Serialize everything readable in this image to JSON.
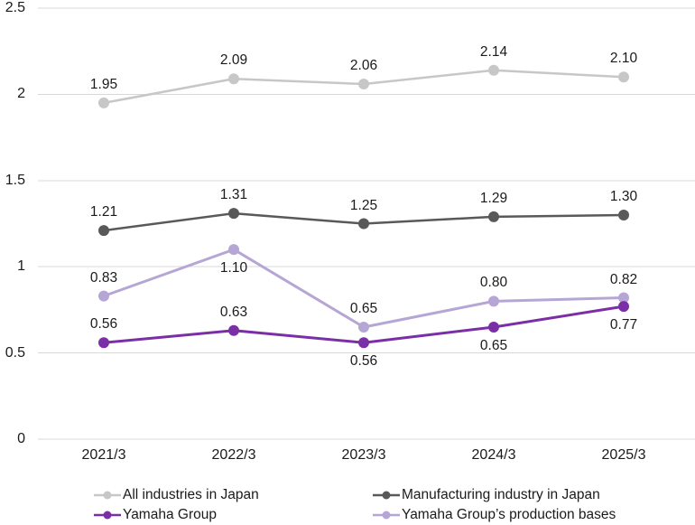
{
  "chart_data": {
    "type": "line",
    "title": "",
    "categories": [
      "2021/3",
      "2022/3",
      "2023/3",
      "2024/3",
      "2025/3"
    ],
    "series": [
      {
        "name": "All industries in Japan",
        "color": "#c7c7c7",
        "values": [
          1.95,
          2.09,
          2.06,
          2.14,
          2.1
        ],
        "labels": [
          "1.95",
          "2.09",
          "2.06",
          "2.14",
          "2.10"
        ],
        "label_positions": [
          "above",
          "above",
          "above",
          "above",
          "above"
        ]
      },
      {
        "name": "Manufacturing industry in Japan",
        "color": "#595959",
        "values": [
          1.21,
          1.31,
          1.25,
          1.29,
          1.3
        ],
        "labels": [
          "1.21",
          "1.31",
          "1.25",
          "1.29",
          "1.30"
        ],
        "label_positions": [
          "above",
          "above",
          "above",
          "above",
          "above"
        ]
      },
      {
        "name": "Yamaha Group",
        "color": "#7b2fa6",
        "values": [
          0.56,
          0.63,
          0.56,
          0.65,
          0.77
        ],
        "labels": [
          "0.56",
          "0.63",
          "0.56",
          "0.65",
          "0.77"
        ],
        "label_positions": [
          "above",
          "above",
          "below",
          "below",
          "below"
        ]
      },
      {
        "name": "Yamaha Group’s production bases",
        "color": "#b6a6d5",
        "values": [
          0.83,
          1.1,
          0.65,
          0.8,
          0.82
        ],
        "labels": [
          "0.83",
          "1.10",
          "0.65",
          "0.80",
          "0.82"
        ],
        "label_positions": [
          "above",
          "below",
          "above",
          "above",
          "above"
        ]
      }
    ],
    "xlabel": "",
    "ylabel": "",
    "ylim": [
      0,
      2.5
    ],
    "y_ticks": [
      "0",
      "0.5",
      "1",
      "1.5",
      "2",
      "2.5"
    ],
    "grid": true,
    "grid_color": "#d8d8d8",
    "text_color": "#1a1a1a",
    "legend_position": "bottom"
  }
}
